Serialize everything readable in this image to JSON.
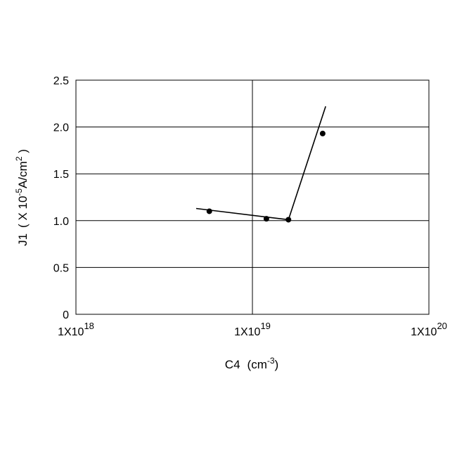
{
  "chart_data": {
    "type": "scatter",
    "xscale": "log",
    "xlim": [
      1e+18,
      1e+20
    ],
    "ylim": [
      0,
      2.5
    ],
    "grid": true,
    "xlabel": {
      "main": "C4",
      "unit_open": "(cm",
      "unit_sup": "-3",
      "unit_close": ")"
    },
    "ylabel": {
      "main": "J1",
      "unit_open": "( X 10",
      "unit_sup1": "-5",
      "unit_mid": "A/cm",
      "unit_sup2": "2",
      "unit_close": " )"
    },
    "x_ticks": [
      {
        "value": 1e+18,
        "base": "1X10",
        "exp": "18"
      },
      {
        "value": 1e+19,
        "base": "1X10",
        "exp": "19"
      },
      {
        "value": 1e+20,
        "base": "1X10",
        "exp": "20"
      }
    ],
    "y_ticks": [
      {
        "value": 0,
        "label": "0"
      },
      {
        "value": 0.5,
        "label": "0.5"
      },
      {
        "value": 1.0,
        "label": "1.0"
      },
      {
        "value": 1.5,
        "label": "1.5"
      },
      {
        "value": 2.0,
        "label": "2.0"
      },
      {
        "value": 2.5,
        "label": "2.5"
      }
    ],
    "points": [
      {
        "x": 5.7e+18,
        "y": 1.1
      },
      {
        "x": 1.2e+19,
        "y": 1.02
      },
      {
        "x": 1.6e+19,
        "y": 1.01
      },
      {
        "x": 2.5e+19,
        "y": 1.93
      }
    ],
    "fit_lines": [
      [
        {
          "x": 4.8e+18,
          "y": 1.13
        },
        {
          "x": 1.6e+19,
          "y": 1.01
        }
      ],
      [
        {
          "x": 1.6e+19,
          "y": 1.01
        },
        {
          "x": 2.6e+19,
          "y": 2.22
        }
      ]
    ]
  }
}
